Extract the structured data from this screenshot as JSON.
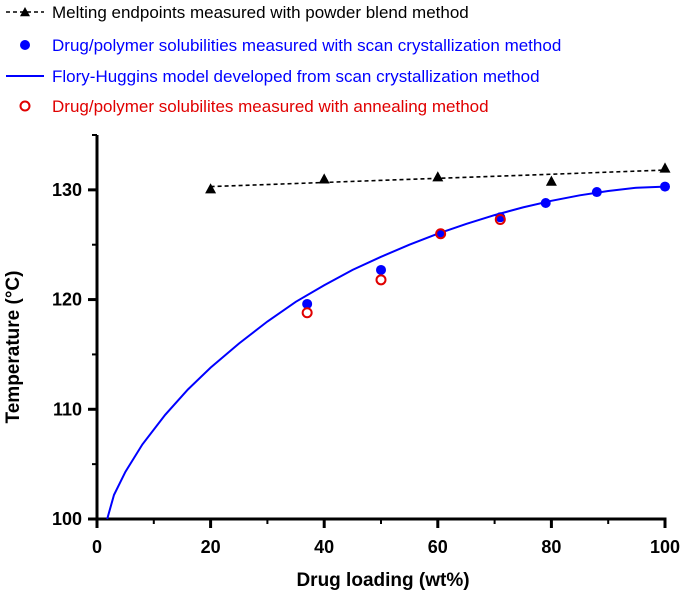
{
  "chart_data": {
    "type": "scatter",
    "title": "",
    "xlabel": "Drug loading (wt%)",
    "ylabel": "Temperature (°C)",
    "xlim": [
      0,
      100
    ],
    "ylim": [
      100,
      135
    ],
    "x_ticks": [
      0,
      20,
      40,
      60,
      80,
      100
    ],
    "y_ticks": [
      100,
      110,
      120,
      130
    ],
    "grid": false,
    "legend_position": "top-left",
    "series": [
      {
        "name": "Melting endpoints measured with powder blend method",
        "style": "dashed-line-triangle",
        "color": "#000000",
        "fit_line": [
          [
            20,
            130.3
          ],
          [
            100,
            131.8
          ]
        ],
        "points": [
          [
            20,
            130.1
          ],
          [
            40,
            131.0
          ],
          [
            60,
            131.2
          ],
          [
            80,
            130.8
          ],
          [
            100,
            132.0
          ]
        ]
      },
      {
        "name": "Drug/polymer solubilities measured with scan crystallization method",
        "style": "filled-circle",
        "color": "#0000ff",
        "points": [
          [
            37,
            119.6
          ],
          [
            50,
            122.7
          ],
          [
            60.5,
            126.0
          ],
          [
            71,
            127.5
          ],
          [
            79,
            128.8
          ],
          [
            88,
            129.8
          ],
          [
            100,
            130.3
          ]
        ]
      },
      {
        "name": "Flory-Huggins model developed from scan crystallization method",
        "style": "line",
        "color": "#0000ff",
        "points": [
          [
            1.8,
            100
          ],
          [
            3,
            102.2
          ],
          [
            5,
            104.3
          ],
          [
            8,
            106.8
          ],
          [
            12,
            109.5
          ],
          [
            16,
            111.8
          ],
          [
            20,
            113.8
          ],
          [
            25,
            116.0
          ],
          [
            30,
            118.0
          ],
          [
            35,
            119.8
          ],
          [
            40,
            121.3
          ],
          [
            45,
            122.7
          ],
          [
            50,
            123.9
          ],
          [
            55,
            125.0
          ],
          [
            60,
            126.0
          ],
          [
            65,
            126.9
          ],
          [
            70,
            127.7
          ],
          [
            75,
            128.4
          ],
          [
            80,
            129.0
          ],
          [
            85,
            129.5
          ],
          [
            90,
            129.9
          ],
          [
            95,
            130.2
          ],
          [
            100,
            130.3
          ]
        ]
      },
      {
        "name": "Drug/polymer solubilites measured with annealing method",
        "style": "open-circle",
        "color": "#e00000",
        "points": [
          [
            37,
            118.8
          ],
          [
            50,
            121.8
          ],
          [
            60.5,
            126.0
          ],
          [
            71,
            127.3
          ]
        ]
      }
    ]
  }
}
